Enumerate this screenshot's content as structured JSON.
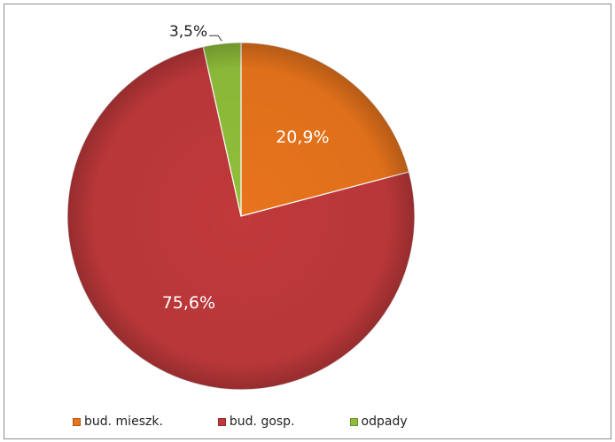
{
  "chart_data": {
    "type": "pie",
    "title": "",
    "slices": [
      {
        "label": "bud. mieszk.",
        "value": 20.9,
        "display": "20,9%",
        "color": "#e8741c"
      },
      {
        "label": "bud. gosp.",
        "value": 75.6,
        "display": "75,6%",
        "color": "#c0393b"
      },
      {
        "label": "odpady",
        "value": 3.5,
        "display": "3,5%",
        "color": "#8fbf3a"
      }
    ],
    "legend_position": "bottom"
  },
  "legend": {
    "items": [
      {
        "label": "bud. mieszk.",
        "color": "#e8741c"
      },
      {
        "label": "bud. gosp.",
        "color": "#c0393b"
      },
      {
        "label": "odpady",
        "color": "#8fbf3a"
      }
    ]
  }
}
